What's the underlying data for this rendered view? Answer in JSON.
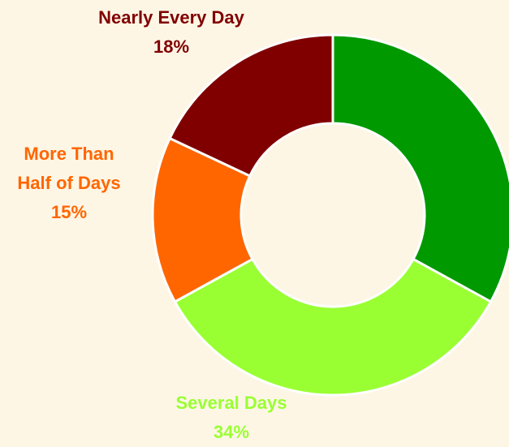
{
  "chart_data": {
    "type": "donut",
    "categories": [
      null,
      "Several Days",
      "More Than Half of Days",
      "Nearly Every Day"
    ],
    "values": [
      33,
      34,
      15,
      18
    ],
    "value_labels": [
      null,
      "34%",
      "15%",
      "18%"
    ],
    "colors": [
      "#009900",
      "#99ff33",
      "#ff6600",
      "#800000"
    ]
  }
}
